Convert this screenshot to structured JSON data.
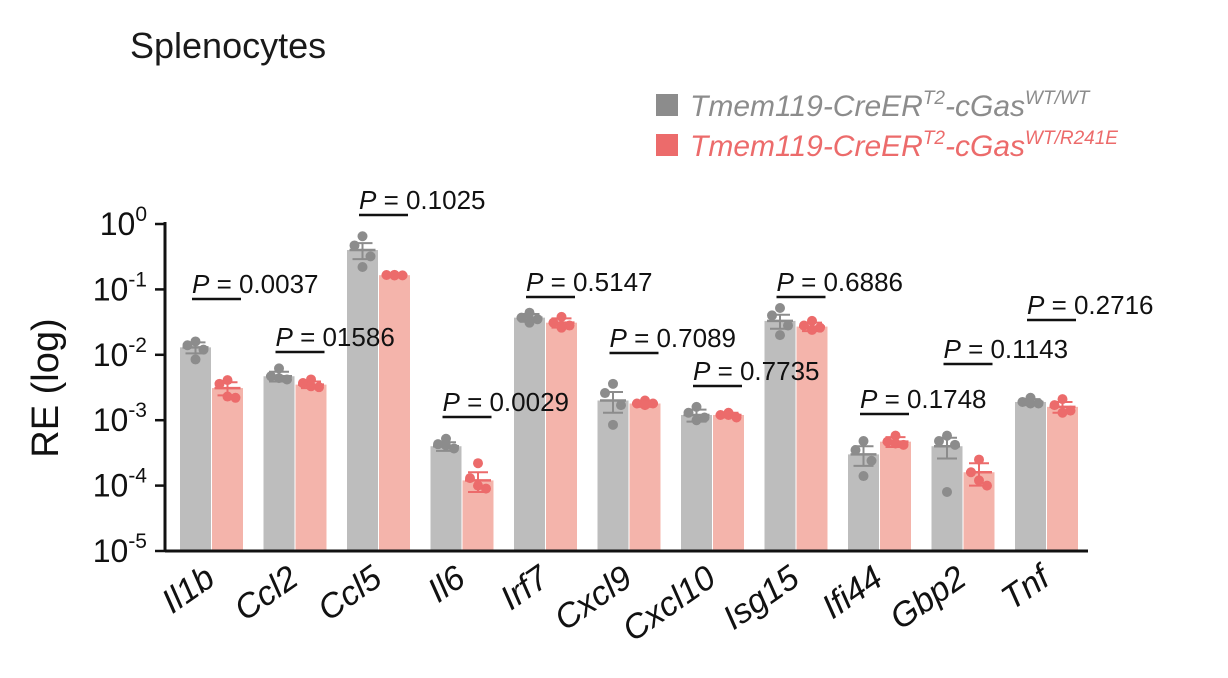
{
  "chart_data": {
    "type": "bar",
    "title": "Splenocytes",
    "ylabel": "RE (log)",
    "xlabel": "",
    "yscale": "log",
    "ylim": [
      1e-05,
      1
    ],
    "yticks": [
      {
        "base": "10",
        "exp": "0",
        "value": 1
      },
      {
        "base": "10",
        "exp": "-1",
        "value": 0.1
      },
      {
        "base": "10",
        "exp": "-2",
        "value": 0.01
      },
      {
        "base": "10",
        "exp": "-3",
        "value": 0.001
      },
      {
        "base": "10",
        "exp": "-4",
        "value": 0.0001
      },
      {
        "base": "10",
        "exp": "-5",
        "value": 1e-05
      }
    ],
    "categories": [
      "Il1b",
      "Ccl2",
      "Ccl5",
      "Il6",
      "Irf7",
      "Cxcl9",
      "Cxcl10",
      "Isg15",
      "Ifi44",
      "Gbp2",
      "Tnf"
    ],
    "legend_position": "top-right",
    "series": [
      {
        "legend_main": "Tmem119-CreER",
        "legend_sup1": "T2",
        "legend_mid": "-cGas",
        "legend_sup2": "WT/WT",
        "color": "#8c8c8c",
        "bar_color": "#bdbdbd",
        "point_color": "#8c8c8c",
        "values": [
          0.013,
          0.0047,
          0.4,
          0.0004,
          0.037,
          0.002,
          0.0012,
          0.033,
          0.0003,
          0.0004,
          0.0019
        ],
        "sem": [
          0.0025,
          0.0008,
          0.11,
          6e-05,
          0.005,
          0.0007,
          0.00025,
          0.008,
          0.0001,
          0.00014,
          0.0002
        ],
        "points": [
          [
            0.016,
            0.014,
            0.012,
            0.0085
          ],
          [
            0.0062,
            0.0047,
            0.0042,
            0.0044
          ],
          [
            0.65,
            0.47,
            0.32,
            0.22
          ],
          [
            0.00052,
            0.00043,
            0.00037,
            0.00041
          ],
          [
            0.044,
            0.037,
            0.035,
            0.031
          ],
          [
            0.0036,
            0.0026,
            0.0017,
            0.00085
          ],
          [
            0.0016,
            0.0013,
            0.0011,
            0.001
          ],
          [
            0.052,
            0.04,
            0.028,
            0.02
          ],
          [
            0.00048,
            0.00035,
            0.00024,
            0.00014
          ],
          [
            0.00058,
            0.00048,
            0.00042,
            8e-05
          ],
          [
            0.0022,
            0.0019,
            0.0018,
            0.0018
          ]
        ]
      },
      {
        "legend_main": "Tmem119-CreER",
        "legend_sup1": "T2",
        "legend_mid": "-cGas",
        "legend_sup2": "WT/R241E",
        "color": "#ec6b6b",
        "bar_color": "#f4b4ab",
        "point_color": "#ec6b6b",
        "values": [
          0.0031,
          0.0035,
          0.165,
          0.00012,
          0.031,
          0.0018,
          0.0012,
          0.027,
          0.00047,
          0.00016,
          0.0016
        ],
        "sem": [
          0.0007,
          0.0004,
          0.004,
          4e-05,
          0.005,
          0.0002,
          0.0001,
          0.004,
          8e-05,
          6e-05,
          0.0003
        ],
        "points": [
          [
            0.0041,
            0.0036,
            0.0022,
            0.0023
          ],
          [
            0.0042,
            0.0037,
            0.0032,
            0.0033
          ],
          [
            0.167,
            0.166,
            0.164,
            0.163
          ],
          [
            0.00022,
            0.00013,
            9e-05,
            0.0001
          ],
          [
            0.038,
            0.031,
            0.028,
            0.026
          ],
          [
            0.002,
            0.0018,
            0.0018,
            0.0017
          ],
          [
            0.0013,
            0.0012,
            0.0011,
            0.0012
          ],
          [
            0.033,
            0.028,
            0.026,
            0.024
          ],
          [
            0.00058,
            0.00047,
            0.00042,
            0.00044
          ],
          [
            0.00025,
            0.00016,
            0.0001,
            0.00012
          ],
          [
            0.0021,
            0.0017,
            0.0014,
            0.0013
          ]
        ]
      }
    ],
    "pvalues": [
      "0.0037",
      "01586",
      "0.1025",
      "0.0029",
      "0.5147",
      "0.7089",
      "0.7735",
      "0.6886",
      "0.1748",
      "0.1143",
      "0.2716"
    ],
    "pvalue_prefix": "P",
    "pvalue_equals": " = "
  }
}
